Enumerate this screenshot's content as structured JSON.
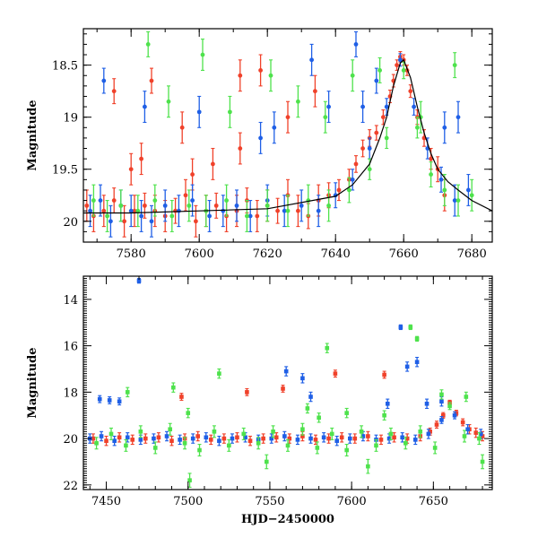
{
  "colors": {
    "red": "#f0412a",
    "blue": "#1f5fe6",
    "green": "#4ee24c",
    "model": "#000000"
  },
  "chart_data": [
    {
      "type": "scatter",
      "panel": "top",
      "title": "",
      "xlabel": "",
      "ylabel": "Magnitude",
      "xlim": [
        7566,
        7686
      ],
      "ylim": [
        20.2,
        18.15
      ],
      "y_inverted": true,
      "grid": false,
      "xticks": [
        7580,
        7600,
        7620,
        7640,
        7660,
        7680
      ],
      "xtick_labels": [
        "7580",
        "7600",
        "7620",
        "7640",
        "7660",
        "7680"
      ],
      "yticks": [
        18.5,
        19,
        19.5,
        20
      ],
      "ytick_labels": [
        "18.5",
        "19",
        "19.5",
        "20"
      ],
      "model_curve": {
        "x": [
          7566,
          7580,
          7600,
          7620,
          7640,
          7645,
          7650,
          7653,
          7655,
          7657,
          7659,
          7660,
          7662,
          7664,
          7666,
          7668,
          7670,
          7673,
          7676,
          7680,
          7686
        ],
        "y": [
          19.92,
          19.92,
          19.9,
          19.88,
          19.76,
          19.65,
          19.45,
          19.2,
          19.0,
          18.7,
          18.48,
          18.45,
          18.62,
          18.9,
          19.15,
          19.35,
          19.5,
          19.62,
          19.7,
          19.8,
          19.9
        ]
      },
      "series": [
        {
          "color": "red",
          "x": [
            7567,
            7569,
            7572,
            7575,
            7578,
            7581,
            7584,
            7587,
            7590,
            7593,
            7596,
            7599,
            7602,
            7605,
            7608,
            7611,
            7614,
            7617,
            7620,
            7623,
            7626,
            7629,
            7632,
            7635,
            7638,
            7641,
            7644,
            7646,
            7648,
            7650,
            7652,
            7654,
            7656,
            7657,
            7658,
            7659,
            7660,
            7661,
            7662,
            7664,
            7666,
            7668,
            7670,
            7672,
            7575,
            7580,
            7586,
            7595,
            7604,
            7612,
            7618,
            7626,
            7634,
            7612,
            7598,
            7583
          ],
          "y": [
            19.85,
            19.95,
            19.9,
            19.8,
            20.0,
            19.9,
            19.85,
            19.9,
            19.95,
            19.9,
            19.75,
            20.0,
            19.9,
            19.85,
            19.95,
            19.9,
            19.8,
            19.95,
            19.85,
            19.9,
            19.75,
            19.9,
            19.95,
            19.8,
            19.75,
            19.7,
            19.6,
            19.45,
            19.3,
            19.2,
            19.15,
            19.0,
            18.8,
            18.65,
            18.5,
            18.42,
            18.45,
            18.55,
            18.75,
            19.0,
            19.2,
            19.4,
            19.5,
            19.75,
            18.75,
            19.5,
            18.65,
            19.1,
            19.45,
            19.3,
            18.55,
            19.0,
            18.75,
            18.6,
            19.55,
            19.4
          ],
          "err": [
            0.15,
            0.15,
            0.15,
            0.12,
            0.15,
            0.15,
            0.12,
            0.15,
            0.15,
            0.12,
            0.15,
            0.15,
            0.15,
            0.12,
            0.15,
            0.15,
            0.12,
            0.15,
            0.15,
            0.12,
            0.15,
            0.15,
            0.12,
            0.15,
            0.12,
            0.1,
            0.1,
            0.08,
            0.08,
            0.08,
            0.07,
            0.07,
            0.06,
            0.06,
            0.05,
            0.05,
            0.05,
            0.05,
            0.06,
            0.07,
            0.08,
            0.1,
            0.12,
            0.15,
            0.12,
            0.15,
            0.12,
            0.15,
            0.15,
            0.15,
            0.15,
            0.15,
            0.15,
            0.15,
            0.15,
            0.15
          ]
        },
        {
          "color": "blue",
          "x": [
            7568,
            7571,
            7574,
            7577,
            7580,
            7583,
            7586,
            7590,
            7594,
            7598,
            7603,
            7607,
            7611,
            7615,
            7620,
            7625,
            7630,
            7635,
            7640,
            7645,
            7650,
            7655,
            7659,
            7663,
            7667,
            7671,
            7675,
            7679,
            7572,
            7584,
            7600,
            7622,
            7638,
            7648,
            7652,
            7672,
            7676,
            7646,
            7633,
            7618
          ],
          "y": [
            19.9,
            19.8,
            20.0,
            19.85,
            19.9,
            19.95,
            20.0,
            19.85,
            19.9,
            19.8,
            19.95,
            19.9,
            19.85,
            19.95,
            19.8,
            19.9,
            19.85,
            19.9,
            19.75,
            19.6,
            19.3,
            18.9,
            18.45,
            18.9,
            19.3,
            19.6,
            19.8,
            19.7,
            18.65,
            18.9,
            18.95,
            19.1,
            18.9,
            18.9,
            18.65,
            19.1,
            19.0,
            18.3,
            18.45,
            19.2
          ],
          "err": [
            0.15,
            0.15,
            0.15,
            0.15,
            0.15,
            0.15,
            0.15,
            0.15,
            0.15,
            0.15,
            0.15,
            0.15,
            0.15,
            0.15,
            0.15,
            0.15,
            0.15,
            0.15,
            0.12,
            0.1,
            0.1,
            0.08,
            0.06,
            0.08,
            0.1,
            0.12,
            0.15,
            0.15,
            0.12,
            0.15,
            0.15,
            0.15,
            0.15,
            0.15,
            0.12,
            0.15,
            0.15,
            0.12,
            0.15,
            0.15
          ]
        },
        {
          "color": "green",
          "x": [
            7569,
            7573,
            7577,
            7582,
            7587,
            7592,
            7597,
            7602,
            7608,
            7614,
            7620,
            7626,
            7632,
            7638,
            7644,
            7650,
            7655,
            7660,
            7664,
            7668,
            7672,
            7676,
            7680,
            7585,
            7591,
            7601,
            7609,
            7621,
            7629,
            7637,
            7645,
            7653,
            7665,
            7675
          ],
          "y": [
            19.8,
            19.95,
            19.85,
            19.9,
            19.8,
            19.95,
            19.85,
            19.9,
            19.8,
            19.95,
            19.85,
            19.9,
            19.8,
            19.85,
            19.7,
            19.5,
            19.2,
            18.55,
            19.1,
            19.55,
            19.7,
            19.8,
            19.75,
            18.3,
            18.85,
            18.4,
            18.95,
            18.6,
            18.85,
            19.0,
            18.6,
            18.55,
            19.0,
            18.5
          ],
          "err": [
            0.15,
            0.15,
            0.15,
            0.15,
            0.15,
            0.15,
            0.15,
            0.15,
            0.15,
            0.15,
            0.15,
            0.15,
            0.15,
            0.15,
            0.12,
            0.1,
            0.1,
            0.08,
            0.1,
            0.12,
            0.15,
            0.15,
            0.15,
            0.12,
            0.15,
            0.15,
            0.15,
            0.15,
            0.15,
            0.15,
            0.15,
            0.12,
            0.15,
            0.12
          ]
        }
      ]
    },
    {
      "type": "scatter",
      "panel": "bottom",
      "title": "",
      "xlabel": "HJD−2450000",
      "ylabel": "Magnitude",
      "xlim": [
        7436,
        7686
      ],
      "ylim": [
        22.2,
        13.0
      ],
      "y_inverted": true,
      "grid": false,
      "xticks": [
        7450,
        7500,
        7550,
        7600,
        7650
      ],
      "xtick_labels": [
        "7450",
        "7500",
        "7550",
        "7600",
        "7650"
      ],
      "yticks": [
        14,
        16,
        18,
        20,
        22
      ],
      "ytick_labels": [
        "14",
        "16",
        "18",
        "20",
        "22"
      ],
      "series": [
        {
          "color": "red",
          "x": [
            7442,
            7450,
            7458,
            7466,
            7474,
            7482,
            7490,
            7498,
            7506,
            7514,
            7522,
            7530,
            7538,
            7546,
            7554,
            7562,
            7570,
            7578,
            7586,
            7594,
            7602,
            7610,
            7618,
            7626,
            7634,
            7642,
            7648,
            7652,
            7656,
            7660,
            7664,
            7668,
            7672,
            7676,
            7680,
            7496,
            7536,
            7558,
            7590,
            7620
          ],
          "y": [
            20.0,
            20.1,
            19.95,
            20.05,
            20.0,
            19.95,
            20.1,
            20.0,
            19.9,
            20.05,
            20.0,
            19.95,
            20.1,
            20.0,
            19.95,
            20.0,
            19.9,
            20.05,
            20.0,
            19.95,
            20.0,
            19.9,
            20.05,
            19.95,
            20.0,
            19.9,
            19.7,
            19.4,
            19.0,
            18.45,
            18.9,
            19.3,
            19.6,
            19.75,
            19.9,
            18.2,
            18.0,
            17.85,
            17.2,
            17.25
          ],
          "err": [
            0.2,
            0.2,
            0.2,
            0.2,
            0.2,
            0.2,
            0.2,
            0.2,
            0.2,
            0.2,
            0.2,
            0.2,
            0.2,
            0.2,
            0.2,
            0.2,
            0.2,
            0.2,
            0.2,
            0.2,
            0.2,
            0.2,
            0.2,
            0.2,
            0.2,
            0.2,
            0.15,
            0.15,
            0.12,
            0.1,
            0.12,
            0.15,
            0.2,
            0.2,
            0.2,
            0.15,
            0.15,
            0.15,
            0.15,
            0.15
          ]
        },
        {
          "color": "blue",
          "x": [
            7440,
            7447,
            7455,
            7463,
            7471,
            7479,
            7487,
            7495,
            7503,
            7511,
            7519,
            7527,
            7535,
            7543,
            7551,
            7559,
            7567,
            7575,
            7583,
            7591,
            7599,
            7607,
            7615,
            7623,
            7631,
            7639,
            7647,
            7655,
            7663,
            7671,
            7679,
            7470,
            7446,
            7452,
            7458,
            7560,
            7570,
            7630,
            7634,
            7640,
            7646,
            7575,
            7622,
            7655
          ],
          "y": [
            20.0,
            19.9,
            20.1,
            19.95,
            20.05,
            20.0,
            19.9,
            20.05,
            20.0,
            19.95,
            20.1,
            20.0,
            19.95,
            20.05,
            20.0,
            19.9,
            20.05,
            20.0,
            19.95,
            20.1,
            20.0,
            19.9,
            20.05,
            20.0,
            19.95,
            20.05,
            19.8,
            19.2,
            19.0,
            19.6,
            19.8,
            13.2,
            18.3,
            18.35,
            18.4,
            17.1,
            17.4,
            15.2,
            16.9,
            16.7,
            18.5,
            18.2,
            18.5,
            18.4
          ],
          "err": [
            0.2,
            0.2,
            0.2,
            0.2,
            0.2,
            0.2,
            0.2,
            0.2,
            0.2,
            0.2,
            0.2,
            0.2,
            0.2,
            0.2,
            0.2,
            0.2,
            0.2,
            0.2,
            0.2,
            0.2,
            0.2,
            0.2,
            0.2,
            0.2,
            0.2,
            0.2,
            0.2,
            0.15,
            0.15,
            0.2,
            0.2,
            0.1,
            0.15,
            0.15,
            0.15,
            0.2,
            0.2,
            0.1,
            0.2,
            0.2,
            0.2,
            0.2,
            0.2,
            0.2
          ]
        },
        {
          "color": "green",
          "x": [
            7444,
            7453,
            7462,
            7471,
            7480,
            7489,
            7498,
            7507,
            7516,
            7525,
            7534,
            7543,
            7552,
            7561,
            7570,
            7579,
            7588,
            7597,
            7606,
            7615,
            7624,
            7633,
            7642,
            7651,
            7660,
            7669,
            7678,
            7463,
            7491,
            7501,
            7519,
            7548,
            7573,
            7585,
            7597,
            7610,
            7636,
            7640,
            7655,
            7680,
            7500,
            7580,
            7620,
            7670
          ],
          "y": [
            20.2,
            19.8,
            20.3,
            19.7,
            20.4,
            19.6,
            20.2,
            20.5,
            19.7,
            20.3,
            19.8,
            20.2,
            19.7,
            20.3,
            19.6,
            20.4,
            19.8,
            20.5,
            19.7,
            20.3,
            19.8,
            20.2,
            19.7,
            20.4,
            18.6,
            19.9,
            20.0,
            18.0,
            17.8,
            21.8,
            17.2,
            21.0,
            18.7,
            16.1,
            18.9,
            21.2,
            15.2,
            15.7,
            18.1,
            21.0,
            18.9,
            19.1,
            19.0,
            18.2
          ],
          "err": [
            0.25,
            0.25,
            0.25,
            0.25,
            0.25,
            0.25,
            0.25,
            0.25,
            0.25,
            0.25,
            0.25,
            0.25,
            0.25,
            0.25,
            0.25,
            0.25,
            0.25,
            0.25,
            0.25,
            0.25,
            0.25,
            0.25,
            0.25,
            0.25,
            0.15,
            0.25,
            0.25,
            0.2,
            0.2,
            0.3,
            0.2,
            0.3,
            0.2,
            0.2,
            0.2,
            0.3,
            0.1,
            0.1,
            0.2,
            0.3,
            0.2,
            0.2,
            0.2,
            0.2
          ]
        }
      ]
    }
  ]
}
